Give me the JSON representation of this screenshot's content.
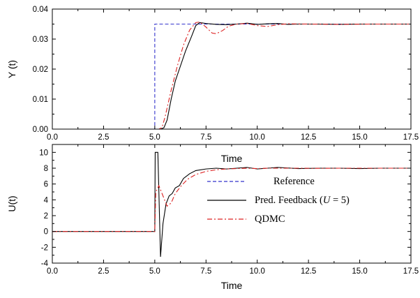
{
  "chart_data": [
    {
      "type": "line",
      "panel": "top",
      "title": "",
      "xlabel": "Time",
      "ylabel": "Y (t)",
      "xlim": [
        0,
        17.5
      ],
      "ylim": [
        0,
        0.04
      ],
      "xticks": [
        "0.0",
        "2.5",
        "5.0",
        "7.5",
        "10.0",
        "12.5",
        "15.0",
        "17.5"
      ],
      "yticks": [
        "0.00",
        "0.01",
        "0.02",
        "0.03",
        "0.04"
      ],
      "grid": false,
      "legend_position": "right",
      "legend": {
        "reference": "Reference",
        "pred_prefix": "Pred. Feedback (",
        "pred_var": "U",
        "pred_suffix": " = 5)",
        "qdmc": "QDMC"
      },
      "series": [
        {
          "name": "Reference",
          "color": "#3333cc",
          "style": "dash",
          "points": [
            [
              0,
              0
            ],
            [
              5.0,
              0
            ],
            [
              5.0,
              0.035
            ],
            [
              17.5,
              0.035
            ]
          ]
        },
        {
          "name": "Pred. Feedback (U = 5)",
          "color": "#000000",
          "style": "solid",
          "points": [
            [
              0,
              0
            ],
            [
              5.3,
              0
            ],
            [
              5.45,
              0.0005
            ],
            [
              5.6,
              0.003
            ],
            [
              5.8,
              0.01
            ],
            [
              6.0,
              0.016
            ],
            [
              6.2,
              0.02
            ],
            [
              6.5,
              0.026
            ],
            [
              6.8,
              0.031
            ],
            [
              7.0,
              0.0345
            ],
            [
              7.2,
              0.0355
            ],
            [
              7.5,
              0.0352
            ],
            [
              8.0,
              0.0349
            ],
            [
              8.5,
              0.0348
            ],
            [
              9.0,
              0.035
            ],
            [
              9.5,
              0.0353
            ],
            [
              10.0,
              0.0349
            ],
            [
              10.5,
              0.0351
            ],
            [
              11.0,
              0.0352
            ],
            [
              11.5,
              0.0349
            ],
            [
              12.0,
              0.035
            ],
            [
              13.0,
              0.035
            ],
            [
              14.0,
              0.0349
            ],
            [
              15.0,
              0.035
            ],
            [
              16.0,
              0.035
            ],
            [
              17.5,
              0.035
            ]
          ]
        },
        {
          "name": "QDMC",
          "color": "#dd2222",
          "style": "dashdot",
          "points": [
            [
              0,
              0
            ],
            [
              5.2,
              0
            ],
            [
              5.35,
              0.0005
            ],
            [
              5.5,
              0.004
            ],
            [
              5.8,
              0.013
            ],
            [
              6.1,
              0.021
            ],
            [
              6.4,
              0.028
            ],
            [
              6.7,
              0.033
            ],
            [
              7.0,
              0.0355
            ],
            [
              7.2,
              0.0357
            ],
            [
              7.5,
              0.034
            ],
            [
              7.8,
              0.032
            ],
            [
              8.0,
              0.0318
            ],
            [
              8.3,
              0.0328
            ],
            [
              8.6,
              0.0343
            ],
            [
              9.0,
              0.035
            ],
            [
              9.5,
              0.0352
            ],
            [
              10.0,
              0.0345
            ],
            [
              10.5,
              0.0342
            ],
            [
              11.0,
              0.0348
            ],
            [
              11.5,
              0.0351
            ],
            [
              12.5,
              0.035
            ],
            [
              14.0,
              0.0349
            ],
            [
              15.5,
              0.035
            ],
            [
              17.5,
              0.035
            ]
          ]
        }
      ]
    },
    {
      "type": "line",
      "panel": "bottom",
      "title": "",
      "xlabel": "Time",
      "ylabel": "U(t)",
      "xlim": [
        0,
        17.5
      ],
      "ylim": [
        -4,
        11
      ],
      "xticks": [
        "0.0",
        "2.5",
        "5.0",
        "7.5",
        "10.0",
        "12.5",
        "15.0",
        "17.5"
      ],
      "yticks": [
        "-4",
        "-2",
        "0",
        "2",
        "4",
        "6",
        "8",
        "10"
      ],
      "grid": false,
      "series": [
        {
          "name": "Pred. Feedback (U = 5)",
          "color": "#000000",
          "style": "solid",
          "points": [
            [
              0,
              0
            ],
            [
              5.0,
              0
            ],
            [
              5.02,
              10
            ],
            [
              5.15,
              10
            ],
            [
              5.2,
              5
            ],
            [
              5.28,
              -3.2
            ],
            [
              5.4,
              1
            ],
            [
              5.55,
              3.5
            ],
            [
              5.7,
              4.5
            ],
            [
              5.85,
              4.8
            ],
            [
              6.0,
              5.5
            ],
            [
              6.2,
              5.8
            ],
            [
              6.4,
              6.7
            ],
            [
              6.7,
              7.3
            ],
            [
              7.0,
              7.7
            ],
            [
              7.5,
              7.9
            ],
            [
              8.0,
              8.0
            ],
            [
              8.5,
              7.9
            ],
            [
              9.0,
              8.0
            ],
            [
              9.5,
              8.1
            ],
            [
              10.0,
              7.9
            ],
            [
              10.5,
              8.0
            ],
            [
              11.0,
              8.1
            ],
            [
              12.0,
              7.95
            ],
            [
              13.0,
              8.0
            ],
            [
              14.0,
              8.0
            ],
            [
              15.0,
              7.95
            ],
            [
              16.0,
              8.0
            ],
            [
              17.5,
              8.0
            ]
          ]
        },
        {
          "name": "QDMC",
          "color": "#dd2222",
          "style": "dashdot",
          "points": [
            [
              0,
              0
            ],
            [
              5.0,
              0
            ],
            [
              5.05,
              5.0
            ],
            [
              5.2,
              5.8
            ],
            [
              5.4,
              4.5
            ],
            [
              5.6,
              3.2
            ],
            [
              5.8,
              3.6
            ],
            [
              6.0,
              4.8
            ],
            [
              6.3,
              5.8
            ],
            [
              6.6,
              6.6
            ],
            [
              7.0,
              7.2
            ],
            [
              7.5,
              7.6
            ],
            [
              8.0,
              7.8
            ],
            [
              8.5,
              7.9
            ],
            [
              9.0,
              7.95
            ],
            [
              9.5,
              8.0
            ],
            [
              10.0,
              7.95
            ],
            [
              10.5,
              8.0
            ],
            [
              11.0,
              8.0
            ],
            [
              12.0,
              8.0
            ],
            [
              13.0,
              7.98
            ],
            [
              14.0,
              8.0
            ],
            [
              15.5,
              8.0
            ],
            [
              17.5,
              8.0
            ]
          ]
        }
      ]
    }
  ]
}
